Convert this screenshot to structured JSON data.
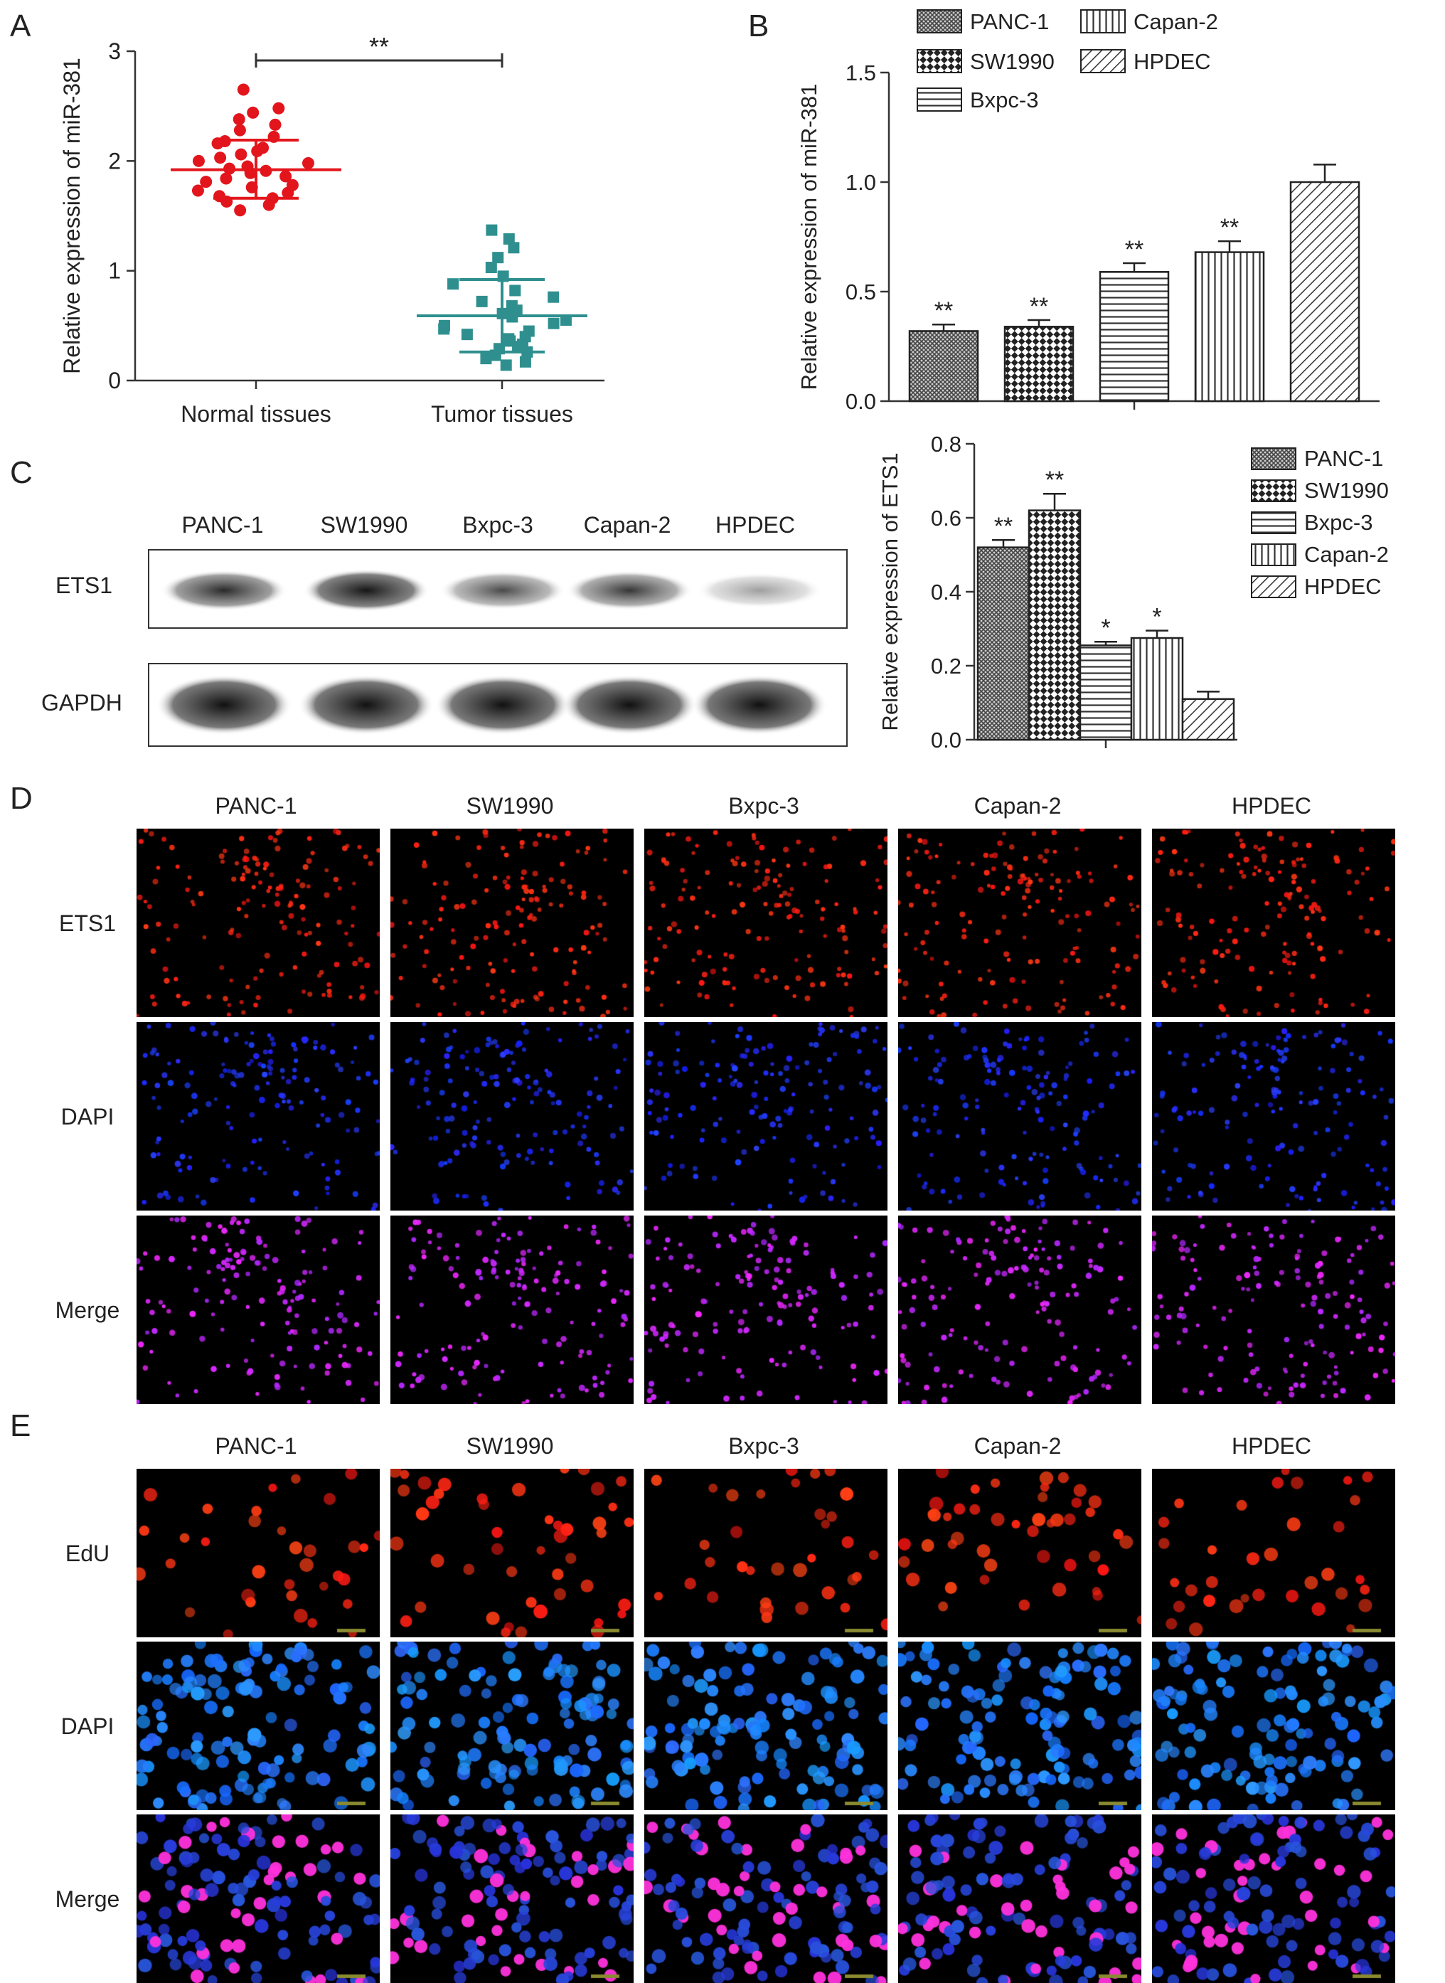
{
  "panels": {
    "a": "A",
    "b": "B",
    "c": "C",
    "d": "D",
    "e": "E"
  },
  "colors": {
    "normal_points": "#e3151c",
    "tumor_points": "#2f8f8f",
    "axis": "#333333"
  },
  "chart_data": [
    {
      "id": "A",
      "type": "scatter",
      "ylabel": "Relative expression of miR-381",
      "ylim": [
        0,
        3
      ],
      "yticks": [
        "0",
        "1",
        "2",
        "3"
      ],
      "categories": [
        "Normal tissues",
        "Tumor tissues"
      ],
      "significance": "**",
      "series": [
        {
          "marker": "circle",
          "color": "#e3151c",
          "mean": 1.92,
          "sd_upper": 2.19,
          "sd_lower": 1.66,
          "values": [
            2.65,
            2.48,
            2.44,
            2.38,
            2.33,
            2.28,
            2.22,
            2.18,
            2.16,
            2.12,
            2.09,
            2.06,
            2.03,
            2.0,
            1.98,
            1.95,
            1.93,
            1.91,
            1.89,
            1.86,
            1.84,
            1.81,
            1.78,
            1.76,
            1.73,
            1.71,
            1.68,
            1.66,
            1.63,
            1.6,
            1.55
          ]
        },
        {
          "marker": "square",
          "color": "#2f8f8f",
          "mean": 0.59,
          "sd_upper": 0.92,
          "sd_lower": 0.26,
          "values": [
            1.37,
            1.29,
            1.21,
            1.12,
            1.03,
            0.95,
            0.88,
            0.82,
            0.76,
            0.72,
            0.68,
            0.64,
            0.61,
            0.58,
            0.55,
            0.52,
            0.5,
            0.47,
            0.45,
            0.42,
            0.4,
            0.38,
            0.36,
            0.33,
            0.31,
            0.29,
            0.26,
            0.23,
            0.2,
            0.17,
            0.14
          ]
        }
      ]
    },
    {
      "id": "B",
      "type": "bar",
      "ylabel": "Relative expression of miR-381",
      "ylim": [
        0,
        1.5
      ],
      "yticks": [
        "0.0",
        "0.5",
        "1.0",
        "1.5"
      ],
      "categories": [
        "PANC-1",
        "SW1990",
        "Bxpc-3",
        "Capan-2",
        "HPDEC"
      ],
      "values": [
        0.32,
        0.34,
        0.59,
        0.68,
        1.0
      ],
      "errors": [
        0.03,
        0.03,
        0.04,
        0.05,
        0.08
      ],
      "significance": [
        "**",
        "**",
        "**",
        "**",
        ""
      ],
      "legend": [
        "PANC-1",
        "Capan-2",
        "SW1990",
        "HPDEC",
        "Bxpc-3"
      ]
    },
    {
      "id": "C",
      "type": "bar",
      "ylabel": "Relative expression of ETS1",
      "ylim": [
        0,
        0.8
      ],
      "yticks": [
        "0.0",
        "0.2",
        "0.4",
        "0.6",
        "0.8"
      ],
      "categories": [
        "PANC-1",
        "SW1990",
        "Bxpc-3",
        "Capan-2",
        "HPDEC"
      ],
      "values": [
        0.52,
        0.62,
        0.255,
        0.275,
        0.11
      ],
      "errors": [
        0.02,
        0.045,
        0.01,
        0.02,
        0.02
      ],
      "significance": [
        "**",
        "**",
        "*",
        "*",
        ""
      ],
      "legend": [
        "PANC-1",
        "SW1990",
        "Bxpc-3",
        "Capan-2",
        "HPDEC"
      ]
    }
  ],
  "blot": {
    "lanes": [
      "PANC-1",
      "SW1990",
      "Bxpc-3",
      "Capan-2",
      "HPDEC"
    ],
    "rows": [
      "ETS1",
      "GAPDH"
    ],
    "band_intensity": {
      "ETS1": [
        0.78,
        0.95,
        0.6,
        0.68,
        0.28
      ],
      "GAPDH": [
        1.0,
        1.0,
        1.0,
        1.0,
        1.0
      ]
    }
  },
  "panel_d": {
    "columns": [
      "PANC-1",
      "SW1990",
      "Bxpc-3",
      "Capan-2",
      "HPDEC"
    ],
    "rows": [
      "ETS1",
      "DAPI",
      "Merge"
    ]
  },
  "panel_e": {
    "columns": [
      "PANC-1",
      "SW1990",
      "Bxpc-3",
      "Capan-2",
      "HPDEC"
    ],
    "rows": [
      "EdU",
      "DAPI",
      "Merge"
    ]
  }
}
